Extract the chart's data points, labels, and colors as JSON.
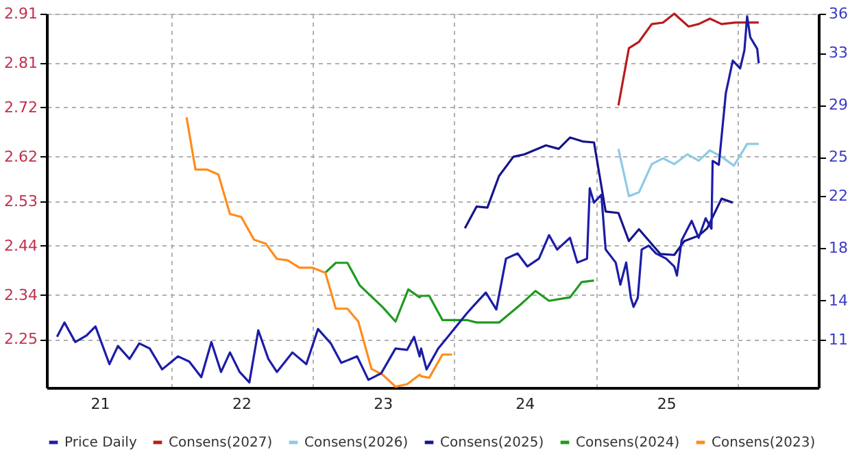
{
  "chart_data": {
    "type": "line",
    "xlim": [
      "2021-02-14",
      "2026-07-29"
    ],
    "xticks": [
      {
        "value": "2021-07-01",
        "label": "21"
      },
      {
        "value": "2022-01-01",
        "label": null
      },
      {
        "value": "2022-07-01",
        "label": "22"
      },
      {
        "value": "2023-01-01",
        "label": null
      },
      {
        "value": "2023-07-01",
        "label": "23"
      },
      {
        "value": "2024-01-01",
        "label": null
      },
      {
        "value": "2024-07-01",
        "label": "24"
      },
      {
        "value": "2025-01-01",
        "label": null
      },
      {
        "value": "2025-07-01",
        "label": "25"
      },
      {
        "value": "2026-01-01",
        "label": null
      }
    ],
    "ylim": [
      2.152,
      2.91
    ],
    "yticks": [
      2.25,
      2.34,
      2.44,
      2.53,
      2.62,
      2.72,
      2.81,
      2.91
    ],
    "y2lim": [
      7.3,
      36
    ],
    "y2ticks": [
      11,
      14,
      18,
      22,
      25,
      29,
      33,
      36
    ],
    "grid": true,
    "legend": "bottom",
    "line_style": "solid",
    "series": [
      {
        "name": "Price Daily",
        "color": "#1c1ca8",
        "axis": "y2",
        "x": [
          "2021-03-13",
          "2021-04-01",
          "2021-04-29",
          "2021-05-28",
          "2021-06-20",
          "2021-07-26",
          "2021-08-17",
          "2021-09-16",
          "2021-10-11",
          "2021-11-07",
          "2021-12-09",
          "2022-01-19",
          "2022-02-17",
          "2022-03-20",
          "2022-04-15",
          "2022-05-10",
          "2022-06-02",
          "2022-06-27",
          "2022-07-22",
          "2022-08-14",
          "2022-09-09",
          "2022-10-01",
          "2022-11-10",
          "2022-12-16",
          "2023-01-15",
          "2023-02-17",
          "2023-03-16",
          "2023-04-26",
          "2023-05-25",
          "2023-06-27",
          "2023-08-03",
          "2023-09-02",
          "2023-09-20",
          "2023-10-04",
          "2023-10-08",
          "2023-10-22",
          "2023-11-21",
          "2023-12-16",
          "2024-02-03",
          "2024-02-21",
          "2024-03-23",
          "2024-04-19",
          "2024-05-14",
          "2024-06-13",
          "2024-07-08",
          "2024-08-07",
          "2024-09-02",
          "2024-09-23",
          "2024-10-26",
          "2024-11-14",
          "2024-12-09",
          "2024-12-16",
          "2024-12-27",
          "2025-01-15",
          "2025-01-26",
          "2025-02-21",
          "2025-03-05",
          "2025-03-20",
          "2025-04-01",
          "2025-04-08",
          "2025-04-19",
          "2025-04-29",
          "2025-05-17",
          "2025-06-05",
          "2025-07-01",
          "2025-07-22",
          "2025-07-29",
          "2025-08-10",
          "2025-09-05",
          "2025-09-23",
          "2025-10-11",
          "2025-10-26",
          "2025-10-29",
          "2025-11-14",
          "2025-12-02",
          "2025-12-20",
          "2026-01-08",
          "2026-01-19",
          "2026-01-26",
          "2026-02-03",
          "2026-02-21",
          "2026-02-25"
        ],
        "values": [
          11.2,
          12.3,
          10.8,
          11.3,
          12.0,
          9.1,
          10.5,
          9.5,
          10.7,
          10.3,
          8.7,
          9.7,
          9.3,
          8.1,
          10.8,
          8.5,
          10.0,
          8.5,
          7.7,
          11.7,
          9.5,
          8.5,
          10.0,
          9.1,
          11.8,
          10.7,
          9.2,
          9.7,
          7.9,
          8.4,
          10.3,
          10.2,
          11.2,
          9.7,
          10.3,
          8.7,
          10.3,
          11.2,
          13.0,
          13.6,
          14.6,
          13.3,
          17.2,
          17.6,
          16.6,
          17.2,
          19.0,
          17.9,
          18.8,
          16.9,
          17.2,
          22.6,
          21.5,
          22.1,
          17.9,
          16.9,
          15.2,
          16.9,
          14.2,
          13.5,
          14.2,
          17.9,
          18.2,
          17.6,
          17.2,
          16.6,
          15.9,
          18.6,
          20.1,
          18.8,
          20.3,
          19.5,
          24.7,
          24.4,
          29.9,
          32.4,
          31.8,
          33.2,
          35.8,
          34.2,
          33.3,
          32.2
        ]
      },
      {
        "name": "Consens(2027)",
        "color": "#b81c1c",
        "x": [
          "2025-02-28",
          "2025-03-27",
          "2025-04-22",
          "2025-05-25",
          "2025-06-23",
          "2025-07-22",
          "2025-08-28",
          "2025-09-23",
          "2025-10-22",
          "2025-11-21",
          "2025-12-27",
          "2026-02-25"
        ],
        "values": [
          2.724,
          2.84,
          2.853,
          2.889,
          2.892,
          2.91,
          2.884,
          2.889,
          2.9,
          2.889,
          2.892,
          2.892
        ]
      },
      {
        "name": "Consens(2026)",
        "color": "#8ccbe3",
        "x": [
          "2025-02-28",
          "2025-03-27",
          "2025-04-22",
          "2025-05-25",
          "2025-06-23",
          "2025-07-22",
          "2025-08-25",
          "2025-09-23",
          "2025-10-22",
          "2025-11-21",
          "2025-12-23",
          "2026-01-26",
          "2026-02-25"
        ],
        "values": [
          2.636,
          2.54,
          2.548,
          2.605,
          2.617,
          2.605,
          2.625,
          2.612,
          2.633,
          2.62,
          2.602,
          2.646,
          2.646
        ]
      },
      {
        "name": "Consens(2025)",
        "color": "#14148a",
        "x": [
          "2024-01-29",
          "2024-02-28",
          "2024-03-27",
          "2024-04-26",
          "2024-06-02",
          "2024-07-01",
          "2024-08-25",
          "2024-09-27",
          "2024-10-26",
          "2024-11-28",
          "2024-12-27",
          "2025-01-26",
          "2025-02-28",
          "2025-03-27",
          "2025-04-22",
          "2025-06-16",
          "2025-07-22",
          "2025-08-17",
          "2025-09-23",
          "2025-10-15",
          "2025-11-21",
          "2025-12-20"
        ],
        "values": [
          2.475,
          2.519,
          2.517,
          2.581,
          2.62,
          2.625,
          2.643,
          2.636,
          2.659,
          2.651,
          2.649,
          2.509,
          2.506,
          2.449,
          2.473,
          2.423,
          2.421,
          2.449,
          2.46,
          2.475,
          2.535,
          2.527
        ]
      },
      {
        "name": "Consens(2024)",
        "color": "#1f9a1f",
        "x": [
          "2023-02-03",
          "2023-03-02",
          "2023-04-01",
          "2023-05-03",
          "2023-07-01",
          "2023-08-03",
          "2023-09-05",
          "2023-10-04",
          "2023-10-08",
          "2023-10-29",
          "2023-12-02",
          "2024-02-03",
          "2024-02-28",
          "2024-04-26",
          "2024-06-20",
          "2024-07-29",
          "2024-09-02",
          "2024-10-26",
          "2024-11-25",
          "2024-12-27"
        ],
        "values": [
          2.385,
          2.405,
          2.405,
          2.359,
          2.315,
          2.286,
          2.351,
          2.335,
          2.338,
          2.338,
          2.289,
          2.289,
          2.284,
          2.284,
          2.32,
          2.348,
          2.328,
          2.335,
          2.366,
          2.369
        ]
      },
      {
        "name": "Consens(2023)",
        "color": "#ff8c1a",
        "x": [
          "2022-02-10",
          "2022-03-05",
          "2022-04-04",
          "2022-05-03",
          "2022-06-02",
          "2022-07-01",
          "2022-08-03",
          "2022-09-02",
          "2022-10-01",
          "2022-10-29",
          "2022-11-28",
          "2023-01-01",
          "2023-02-03",
          "2023-03-02",
          "2023-04-01",
          "2023-04-29",
          "2023-06-02",
          "2023-07-01",
          "2023-08-03",
          "2023-09-02",
          "2023-10-04",
          "2023-10-08",
          "2023-10-29",
          "2023-12-02",
          "2023-12-27"
        ],
        "values": [
          2.7,
          2.594,
          2.594,
          2.584,
          2.504,
          2.498,
          2.452,
          2.444,
          2.413,
          2.41,
          2.395,
          2.395,
          2.385,
          2.312,
          2.312,
          2.286,
          2.19,
          2.178,
          2.154,
          2.159,
          2.178,
          2.175,
          2.172,
          2.219,
          2.219
        ]
      }
    ]
  }
}
